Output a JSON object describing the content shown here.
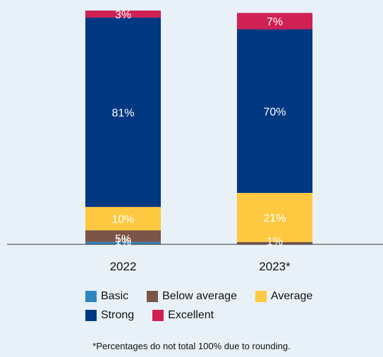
{
  "chart_data": {
    "type": "bar",
    "stacked": true,
    "categories": [
      "2022",
      "2023*"
    ],
    "series": [
      {
        "name": "Basic",
        "color": "#2e86c1",
        "values": [
          1,
          0
        ],
        "labels": [
          "1%",
          ""
        ]
      },
      {
        "name": "Below average",
        "color": "#7a5548",
        "values": [
          5,
          1
        ],
        "labels": [
          "5%",
          "1%"
        ]
      },
      {
        "name": "Average",
        "color": "#fec841",
        "values": [
          10,
          21
        ],
        "labels": [
          "10%",
          "21%"
        ]
      },
      {
        "name": "Strong",
        "color": "#003882",
        "values": [
          81,
          70
        ],
        "labels": [
          "81%",
          "70%"
        ]
      },
      {
        "name": "Excellent",
        "color": "#cf2154",
        "values": [
          3,
          7
        ],
        "labels": [
          "3%",
          "7%"
        ]
      }
    ],
    "ylim": [
      0,
      100
    ],
    "grid": false,
    "legend_position": "bottom",
    "footnote": "*Percentages do not total 100% due to rounding."
  }
}
